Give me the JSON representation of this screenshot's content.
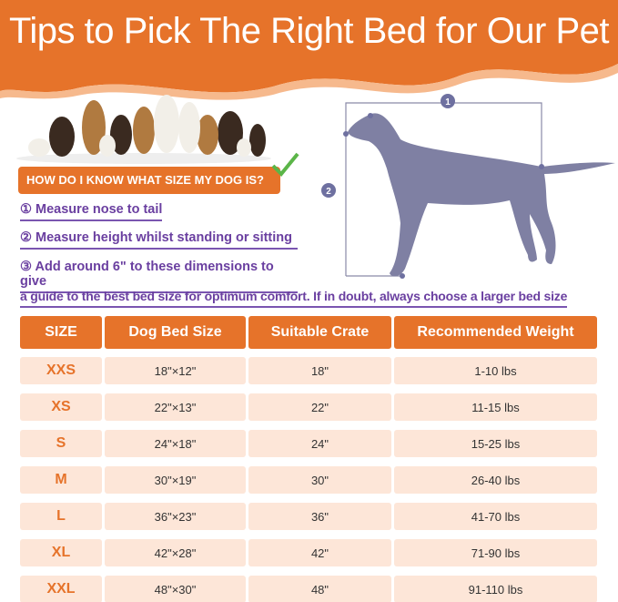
{
  "title": "Tips to Pick The Right Bed for Our Pet",
  "question": "HOW DO I KNOW WHAT SIZE MY DOG IS?",
  "steps": [
    "① Measure nose to tail",
    "② Measure height whilst standing or sitting",
    "③ Add around 6\" to these dimensions to give"
  ],
  "guide": "a guide to the best bed size for optimum comfort. If in doubt, always choose a larger bed size",
  "diagram": {
    "label1": "1",
    "label2": "2"
  },
  "colors": {
    "orange": "#e6732a",
    "purple": "#6a3fa0",
    "row": "#fde6d8",
    "silhouette": "#7f80a3"
  },
  "table": {
    "headers": [
      "SIZE",
      "Dog Bed Size",
      "Suitable Crate",
      "Recommended Weight"
    ],
    "rows": [
      [
        "XXS",
        "18\"×12\"",
        "18\"",
        "1-10 lbs"
      ],
      [
        "XS",
        "22\"×13\"",
        "22\"",
        "11-15 lbs"
      ],
      [
        "S",
        "24\"×18\"",
        "24\"",
        "15-25 lbs"
      ],
      [
        "M",
        "30\"×19\"",
        "30\"",
        "26-40 lbs"
      ],
      [
        "L",
        "36\"×23\"",
        "36\"",
        "41-70 lbs"
      ],
      [
        "XL",
        "42\"×28\"",
        "42\"",
        "71-90 lbs"
      ],
      [
        "XXL",
        "48\"×30\"",
        "48\"",
        "91-110 lbs"
      ]
    ]
  }
}
